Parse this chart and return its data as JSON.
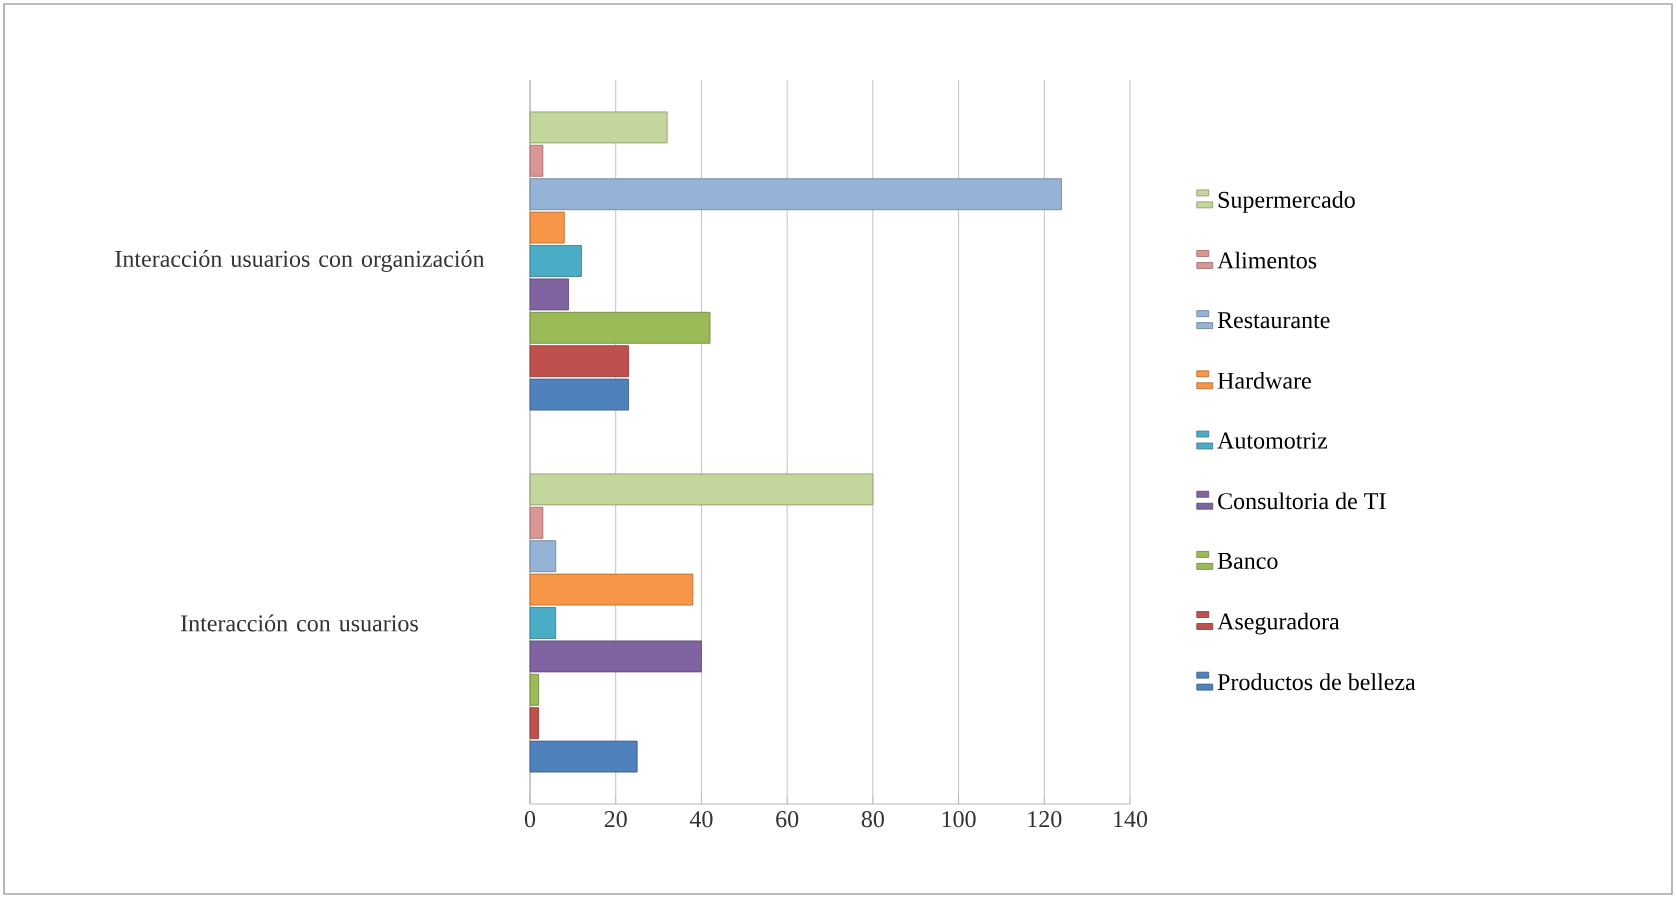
{
  "chart_data": {
    "type": "bar",
    "orientation": "horizontal",
    "categories": [
      "Interacción usuarios con organización",
      "Interacción con usuarios"
    ],
    "series": [
      {
        "name": "Productos de belleza",
        "color": "#4f81bd",
        "values": [
          23,
          25
        ]
      },
      {
        "name": "Aseguradora",
        "color": "#c0504d",
        "values": [
          23,
          2
        ]
      },
      {
        "name": "Banco",
        "color": "#9bbb59",
        "values": [
          42,
          2
        ]
      },
      {
        "name": "Consultoria de TI",
        "color": "#8064a2",
        "values": [
          9,
          40
        ]
      },
      {
        "name": "Automotriz",
        "color": "#4bacc6",
        "values": [
          12,
          6
        ]
      },
      {
        "name": "Hardware",
        "color": "#f79646",
        "values": [
          8,
          38
        ]
      },
      {
        "name": "Restaurante",
        "color": "#95b3d7",
        "values": [
          124,
          6
        ]
      },
      {
        "name": "Alimentos",
        "color": "#d99694",
        "values": [
          3,
          3
        ]
      },
      {
        "name": "Supermercado",
        "color": "#c3d69b",
        "values": [
          32,
          80
        ]
      }
    ],
    "xlim": [
      0,
      140
    ],
    "xticks": [
      0,
      20,
      40,
      60,
      80,
      100,
      120,
      140
    ],
    "grid": "x",
    "legend": "right"
  }
}
